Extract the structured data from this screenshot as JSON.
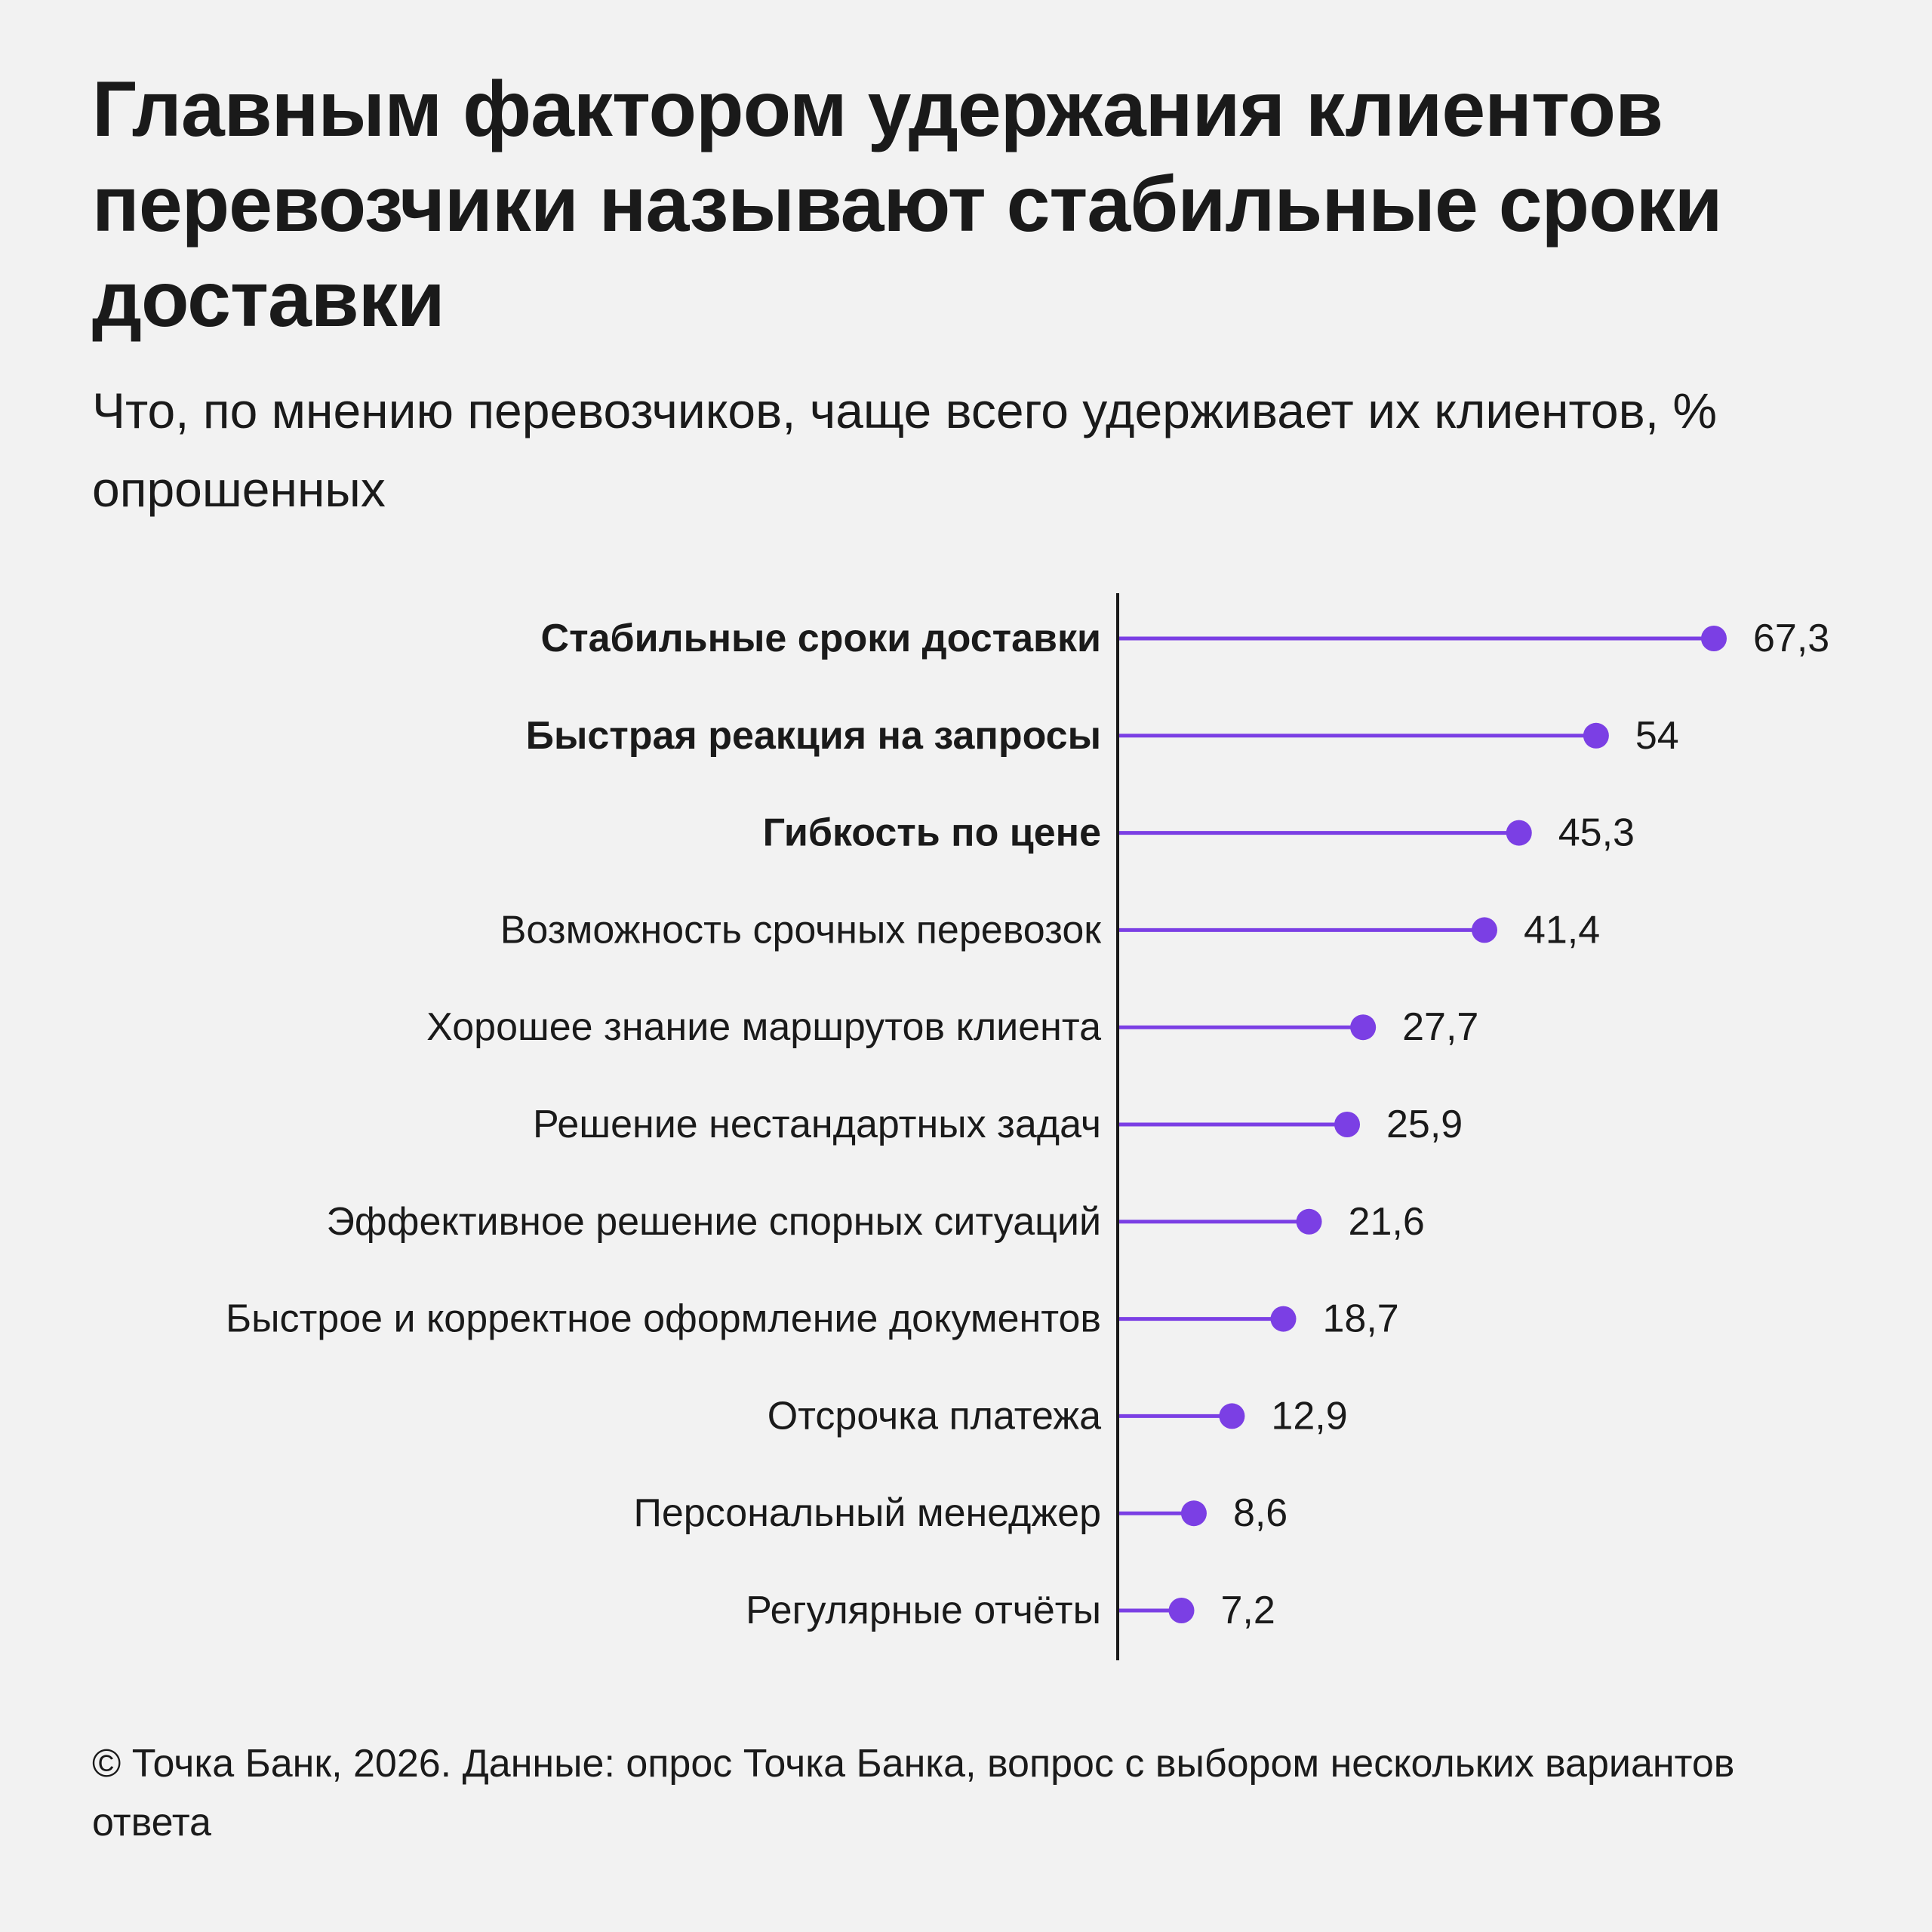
{
  "headline": "Главным фактором удержания клиентов перевозчики называют стабильные сроки доставки",
  "subtitle": "Что, по мнению перевозчиков, чаще всего удерживает их клиентов, % опрошенных",
  "footer": "© Точка Банк, 2026. Данные: опрос Точка Банка, вопрос с выбором нескольких вариантов ответа",
  "colors": {
    "accent": "#7b3fe4",
    "text": "#1a1a1a",
    "axis": "#1a1a1a",
    "background": "#f2f2f2"
  },
  "chart_data": {
    "type": "bar",
    "style": "lollipop-horizontal",
    "categories": [
      "Стабильные сроки доставки",
      "Быстрая реакция на запросы",
      "Гибкость по цене",
      "Возможность срочных перевозок",
      "Хорошее знание маршрутов клиента",
      "Решение нестандартных задач",
      "Эффективное решение спорных ситуаций",
      "Быстрое и корректное оформление документов",
      "Отсрочка платежа",
      "Персональный менеджер",
      "Регулярные отчёты"
    ],
    "values": [
      67.3,
      54,
      45.3,
      41.4,
      27.7,
      25.9,
      21.6,
      18.7,
      12.9,
      8.6,
      7.2
    ],
    "value_labels": [
      "67,3",
      "54",
      "45,3",
      "41,4",
      "27,7",
      "25,9",
      "21,6",
      "18,7",
      "12,9",
      "8,6",
      "7,2"
    ],
    "bold_categories": [
      0,
      1,
      2
    ],
    "xlim": [
      0,
      67.3
    ],
    "grid": false,
    "legend": "none"
  }
}
